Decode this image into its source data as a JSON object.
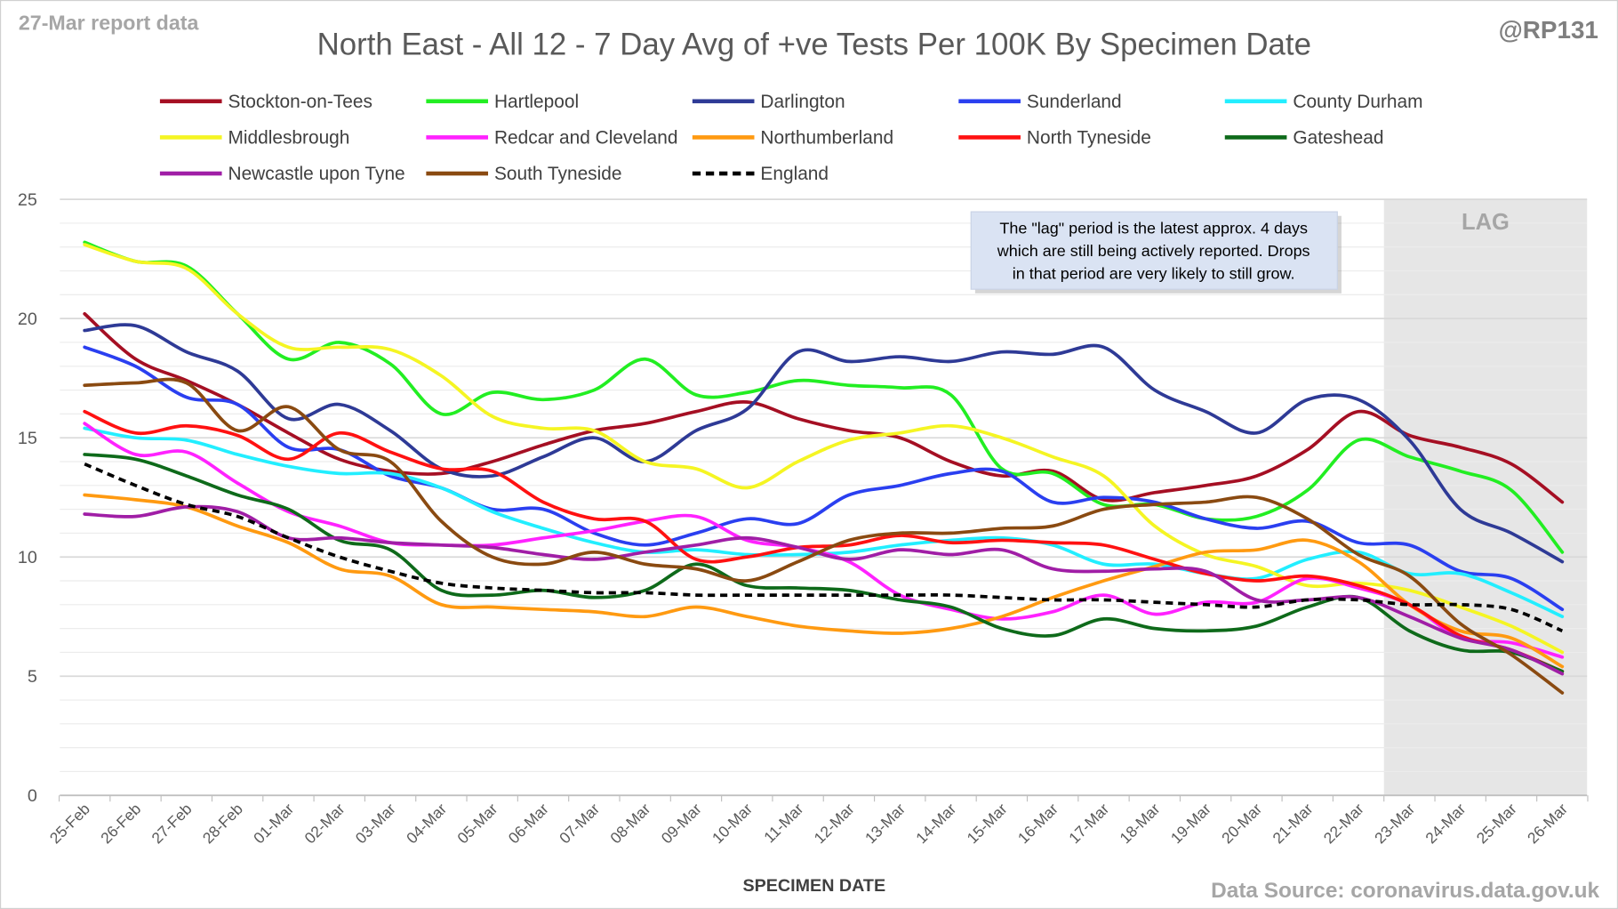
{
  "report_label": "27-Mar report data",
  "handle": "@RP131",
  "source": "Data Source: coronavirus.data.gov.uk",
  "annotation": [
    "The \"lag\" period is the latest approx. 4 days",
    "which are still being actively reported.  Drops",
    "in that period are very likely to still grow."
  ],
  "lag_label": "LAG",
  "chart_data": {
    "type": "line",
    "title": "North East - All 12 - 7 Day Avg of +ve Tests Per 100K By Specimen Date",
    "xlabel": "SPECIMEN DATE",
    "ylabel": "",
    "ylim": [
      0,
      25
    ],
    "yticks": [
      0,
      5,
      10,
      15,
      20,
      25
    ],
    "grid": true,
    "legend_position": "top",
    "lag_start": "23-Mar",
    "x": [
      "25-Feb",
      "26-Feb",
      "27-Feb",
      "28-Feb",
      "01-Mar",
      "02-Mar",
      "03-Mar",
      "04-Mar",
      "05-Mar",
      "06-Mar",
      "07-Mar",
      "08-Mar",
      "09-Mar",
      "10-Mar",
      "11-Mar",
      "12-Mar",
      "13-Mar",
      "14-Mar",
      "15-Mar",
      "16-Mar",
      "17-Mar",
      "18-Mar",
      "19-Mar",
      "20-Mar",
      "21-Mar",
      "22-Mar",
      "23-Mar",
      "24-Mar",
      "25-Mar",
      "26-Mar"
    ],
    "series": [
      {
        "name": "Stockton-on-Tees",
        "color": "#a50f23",
        "values": [
          20.2,
          18.3,
          17.4,
          16.4,
          15.2,
          14.1,
          13.6,
          13.5,
          14.0,
          14.7,
          15.3,
          15.6,
          16.1,
          16.5,
          15.8,
          15.3,
          15.0,
          14.0,
          13.4,
          13.6,
          12.4,
          12.7,
          13.0,
          13.4,
          14.5,
          16.1,
          15.1,
          14.6,
          13.9,
          12.3
        ]
      },
      {
        "name": "Hartlepool",
        "color": "#22ee22",
        "values": [
          23.2,
          22.4,
          22.2,
          20.2,
          18.3,
          19.0,
          18.1,
          16.0,
          16.9,
          16.6,
          17.0,
          18.3,
          16.8,
          16.9,
          17.4,
          17.2,
          17.1,
          16.8,
          13.7,
          13.5,
          12.2,
          12.2,
          11.6,
          11.7,
          12.8,
          14.9,
          14.2,
          13.6,
          12.8,
          10.2
        ]
      },
      {
        "name": "Darlington",
        "color": "#2e3a96",
        "values": [
          19.5,
          19.7,
          18.6,
          17.8,
          15.8,
          16.4,
          15.3,
          13.7,
          13.4,
          14.2,
          15.0,
          14.0,
          15.3,
          16.2,
          18.6,
          18.2,
          18.4,
          18.2,
          18.6,
          18.5,
          18.8,
          17.0,
          16.1,
          15.2,
          16.6,
          16.6,
          14.9,
          12.0,
          11.0,
          9.8
        ]
      },
      {
        "name": "Sunderland",
        "color": "#2a3ff0",
        "values": [
          18.8,
          18.0,
          16.7,
          16.4,
          14.6,
          14.5,
          13.4,
          12.9,
          12.0,
          12.0,
          11.0,
          10.5,
          11.0,
          11.6,
          11.4,
          12.6,
          13.0,
          13.5,
          13.6,
          12.3,
          12.5,
          12.3,
          11.6,
          11.2,
          11.5,
          10.6,
          10.5,
          9.4,
          9.1,
          7.8
        ]
      },
      {
        "name": "County Durham",
        "color": "#22eeff",
        "values": [
          15.4,
          15.0,
          14.9,
          14.3,
          13.8,
          13.5,
          13.5,
          12.9,
          11.9,
          11.2,
          10.6,
          10.2,
          10.3,
          10.1,
          10.1,
          10.2,
          10.5,
          10.7,
          10.8,
          10.5,
          9.7,
          9.7,
          9.3,
          9.1,
          9.9,
          10.2,
          9.3,
          9.3,
          8.5,
          7.5
        ]
      },
      {
        "name": "Middlesbrough",
        "color": "#f5f523",
        "values": [
          23.1,
          22.4,
          22.1,
          20.2,
          18.8,
          18.8,
          18.7,
          17.6,
          15.9,
          15.4,
          15.3,
          14.0,
          13.7,
          12.9,
          14.0,
          14.9,
          15.2,
          15.5,
          15.0,
          14.2,
          13.4,
          11.3,
          10.1,
          9.6,
          8.8,
          8.9,
          8.6,
          7.9,
          7.1,
          6.0
        ]
      },
      {
        "name": "Redcar and Cleveland",
        "color": "#ff22ff",
        "values": [
          15.6,
          14.3,
          14.4,
          13.1,
          11.9,
          11.3,
          10.6,
          10.5,
          10.5,
          10.8,
          11.1,
          11.5,
          11.7,
          10.7,
          10.4,
          9.8,
          8.4,
          7.8,
          7.4,
          7.7,
          8.4,
          7.6,
          8.1,
          8.1,
          9.1,
          8.7,
          8.0,
          6.6,
          6.4,
          5.8
        ]
      },
      {
        "name": "Northumberland",
        "color": "#ff9a11",
        "values": [
          12.6,
          12.4,
          12.1,
          11.3,
          10.6,
          9.5,
          9.2,
          8.0,
          7.9,
          7.8,
          7.7,
          7.5,
          7.9,
          7.5,
          7.1,
          6.9,
          6.8,
          7.0,
          7.5,
          8.3,
          9.0,
          9.6,
          10.2,
          10.3,
          10.7,
          9.8,
          8.0,
          6.9,
          6.6,
          5.4
        ]
      },
      {
        "name": "North Tyneside",
        "color": "#ff1111",
        "values": [
          16.1,
          15.2,
          15.5,
          15.1,
          14.1,
          15.2,
          14.4,
          13.7,
          13.6,
          12.3,
          11.6,
          11.5,
          9.9,
          10.0,
          10.4,
          10.5,
          10.9,
          10.6,
          10.7,
          10.6,
          10.5,
          9.9,
          9.3,
          9.0,
          9.2,
          8.8,
          8.0,
          6.7,
          6.1,
          5.2
        ]
      },
      {
        "name": "Gateshead",
        "color": "#0e6a1a",
        "values": [
          14.3,
          14.1,
          13.4,
          12.6,
          12.0,
          10.7,
          10.3,
          8.6,
          8.4,
          8.6,
          8.3,
          8.6,
          9.7,
          8.8,
          8.7,
          8.6,
          8.2,
          7.9,
          7.0,
          6.7,
          7.4,
          7.0,
          6.9,
          7.1,
          7.9,
          8.3,
          6.9,
          6.1,
          6.0,
          5.2
        ]
      },
      {
        "name": "Newcastle upon Tyne",
        "color": "#a01ea6",
        "values": [
          11.8,
          11.7,
          12.1,
          11.9,
          10.8,
          10.8,
          10.6,
          10.5,
          10.4,
          10.1,
          9.9,
          10.2,
          10.5,
          10.8,
          10.4,
          9.9,
          10.3,
          10.1,
          10.3,
          9.5,
          9.4,
          9.5,
          9.4,
          8.2,
          8.2,
          8.3,
          7.5,
          6.6,
          6.1,
          5.1
        ]
      },
      {
        "name": "South Tyneside",
        "color": "#8a4a11",
        "values": [
          17.2,
          17.3,
          17.3,
          15.3,
          16.3,
          14.5,
          14.0,
          11.5,
          10.0,
          9.7,
          10.2,
          9.7,
          9.5,
          9.0,
          9.8,
          10.7,
          11.0,
          11.0,
          11.2,
          11.3,
          12.0,
          12.2,
          12.3,
          12.5,
          11.6,
          10.1,
          9.2,
          7.2,
          5.9,
          4.3
        ]
      },
      {
        "name": "England",
        "color": "#000000",
        "dashed": true,
        "values": [
          13.9,
          13.0,
          12.2,
          11.7,
          10.8,
          10.0,
          9.4,
          8.9,
          8.7,
          8.6,
          8.5,
          8.5,
          8.4,
          8.4,
          8.4,
          8.4,
          8.4,
          8.4,
          8.3,
          8.2,
          8.2,
          8.1,
          8.0,
          7.9,
          8.2,
          8.2,
          8.0,
          8.0,
          7.8,
          6.9
        ]
      }
    ]
  }
}
